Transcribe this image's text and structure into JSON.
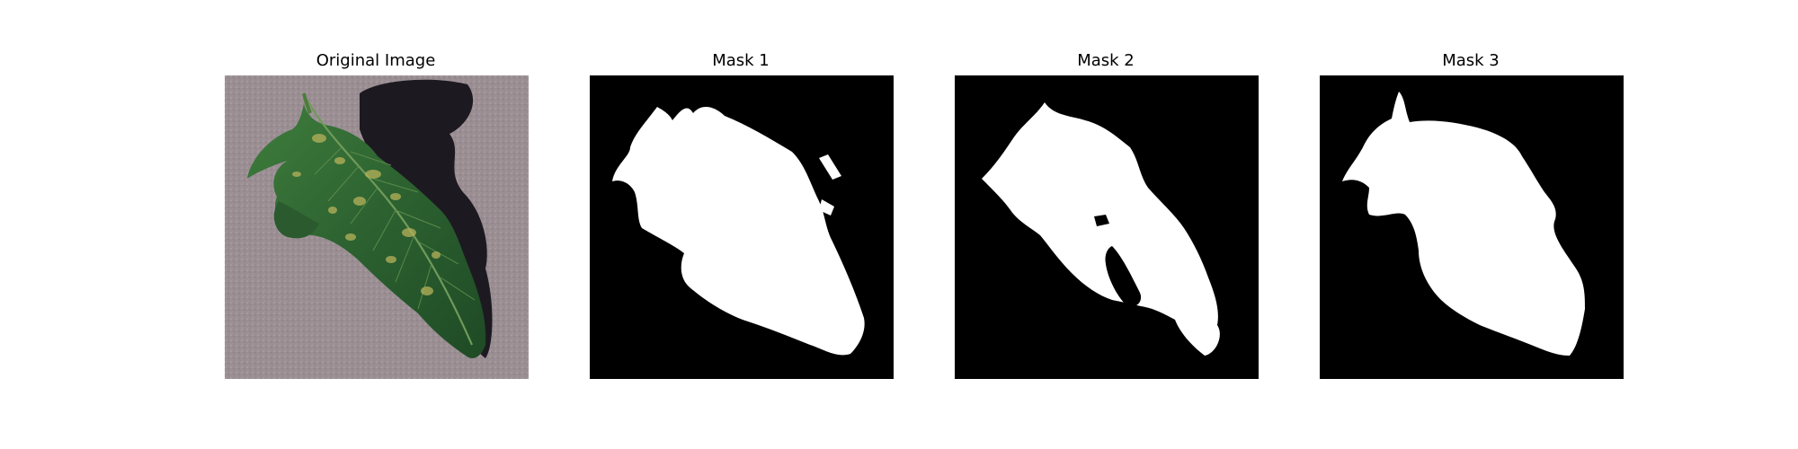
{
  "figure": {
    "panels": [
      {
        "title": "Original Image"
      },
      {
        "title": "Mask 1"
      },
      {
        "title": "Mask 2"
      },
      {
        "title": "Mask 3"
      }
    ]
  },
  "colors": {
    "background": "#ffffff",
    "mask_background": "#000000",
    "mask_foreground": "#ffffff",
    "ground": "#9a8e93",
    "leaf_dark": "#24502a",
    "leaf_mid": "#3d7a3a",
    "leaf_spot": "#b7b25a",
    "shadow": "#1c1a20"
  }
}
